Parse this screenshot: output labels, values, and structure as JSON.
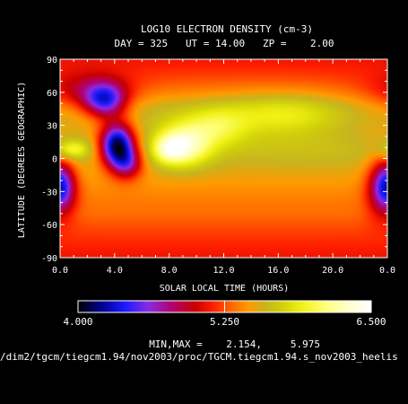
{
  "chart_data": {
    "type": "heatmap",
    "title": "LOG10 ELECTRON DENSITY (cm-3)",
    "subtitle": "DAY = 325   UT = 14.00   ZP =    2.00",
    "xlabel": "SOLAR LOCAL TIME (HOURS)",
    "ylabel": "LATITUDE (DEGREES GEOGRAPHIC)",
    "xlim": [
      0,
      24
    ],
    "ylim": [
      -90,
      90
    ],
    "x_ticks": [
      "0.0",
      "4.0",
      "8.0",
      "12.0",
      "16.0",
      "20.0",
      "0.0"
    ],
    "y_ticks": [
      "90",
      "60",
      "30",
      "0",
      "-30",
      "-60",
      "-90"
    ],
    "colorbar": {
      "min": 4.0,
      "max": 6.5,
      "tick_labels": [
        "4.000",
        "5.250",
        "6.500"
      ],
      "stops": [
        {
          "v": 4.0,
          "color": "#000000"
        },
        {
          "v": 4.2,
          "color": "#000090"
        },
        {
          "v": 4.4,
          "color": "#1a1aff"
        },
        {
          "v": 4.6,
          "color": "#8a2be2"
        },
        {
          "v": 4.8,
          "color": "#b00070"
        },
        {
          "v": 5.0,
          "color": "#c80000"
        },
        {
          "v": 5.15,
          "color": "#ff1e00"
        },
        {
          "v": 5.3,
          "color": "#ff6400"
        },
        {
          "v": 5.45,
          "color": "#ff9a00"
        },
        {
          "v": 5.6,
          "color": "#c8b41e"
        },
        {
          "v": 5.75,
          "color": "#d2d20a"
        },
        {
          "v": 5.9,
          "color": "#f0f014"
        },
        {
          "v": 6.1,
          "color": "#ffff78"
        },
        {
          "v": 6.3,
          "color": "#ffffc8"
        },
        {
          "v": 6.5,
          "color": "#ffffff"
        }
      ]
    },
    "minmax_label": "MIN,MAX =",
    "min_value": "2.154,",
    "max_value": "5.975",
    "base_level": 5.3,
    "features": [
      {
        "lt": 4.2,
        "lat": 12,
        "w_lt": 0.9,
        "w_lat": 14,
        "amp": -1.45
      },
      {
        "lt": 3.3,
        "lat": 52,
        "w_lt": 1.1,
        "w_lat": 11,
        "amp": -0.9
      },
      {
        "lt": 2.0,
        "lat": 60,
        "w_lt": 2.2,
        "w_lat": 12,
        "amp": -0.35
      },
      {
        "lt": 5.0,
        "lat": -5,
        "w_lt": 0.8,
        "w_lat": 10,
        "amp": -0.6
      },
      {
        "lt": 23.8,
        "lat": -25,
        "w_lt": 0.9,
        "w_lat": 18,
        "amp": -0.75
      },
      {
        "lt": 0.1,
        "lat": -25,
        "w_lt": 0.7,
        "w_lat": 14,
        "amp": -0.45
      },
      {
        "lt": 9.0,
        "lat": 12,
        "w_lt": 1.4,
        "w_lat": 13,
        "amp": 0.75
      },
      {
        "lt": 8.0,
        "lat": 8,
        "w_lt": 0.8,
        "w_lat": 8,
        "amp": 0.4
      },
      {
        "lt": 11.5,
        "lat": 28,
        "w_lt": 1.6,
        "w_lat": 12,
        "amp": 0.35
      },
      {
        "lt": 16.5,
        "lat": 40,
        "w_lt": 3.0,
        "w_lat": 14,
        "amp": 0.3
      },
      {
        "lt": 0.9,
        "lat": 8,
        "w_lt": 0.9,
        "w_lat": 6,
        "amp": 0.45
      },
      {
        "lt": 11.0,
        "lat": 40,
        "w_lt": 8.0,
        "w_lat": 22,
        "amp": 0.15
      },
      {
        "lt": 18.0,
        "lat": 8,
        "w_lt": 6.0,
        "w_lat": 12,
        "amp": 0.1
      }
    ]
  },
  "footer": {
    "path": "/dim2/tgcm/tiegcm1.94/nov2003/proc/TGCM.tiegcm1.94.s_nov2003_heelis"
  }
}
